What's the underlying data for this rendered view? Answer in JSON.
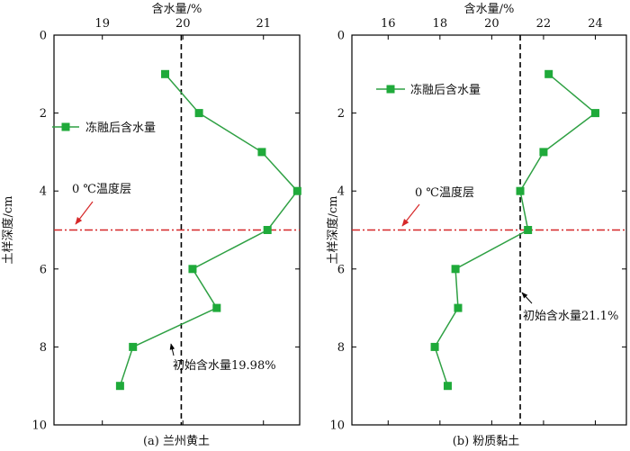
{
  "colors": {
    "series": "#2ea043",
    "marker": "#1faa3a",
    "threshold_line": "#d62728",
    "initial_line": "#000000",
    "axis": "#000000"
  },
  "chart_data": [
    {
      "type": "line",
      "caption": "(a) 兰州黄土",
      "xlabel": "含水量/%",
      "ylabel": "土样深度/cm",
      "x_axis_position": "top",
      "y_inverted": true,
      "xlim": [
        18.4,
        21.45
      ],
      "ylim": [
        0,
        10
      ],
      "xticks": [
        19,
        20,
        21
      ],
      "yticks": [
        0,
        2,
        4,
        6,
        8,
        10
      ],
      "grid": false,
      "legend": {
        "label": "冻融后含水量",
        "placement": "upper-left"
      },
      "series": [
        {
          "name": "冻融后含水量",
          "x": [
            19.78,
            20.2,
            20.98,
            21.42,
            21.05,
            20.12,
            20.42,
            19.38,
            19.22
          ],
          "y": [
            1,
            2,
            3,
            4,
            5,
            6,
            7,
            8,
            9
          ]
        }
      ],
      "threshold": {
        "depth": 5,
        "label": "0 ℃温度层"
      },
      "initial": {
        "value": 19.98,
        "label": "初始含水量19.98%"
      }
    },
    {
      "type": "line",
      "caption": "(b) 粉质黏土",
      "xlabel": "含水量/%",
      "ylabel": "土样深度/cm",
      "x_axis_position": "top",
      "y_inverted": true,
      "xlim": [
        14.6,
        25.2
      ],
      "ylim": [
        0,
        10
      ],
      "xticks": [
        16,
        18,
        20,
        22,
        24
      ],
      "yticks": [
        0,
        2,
        4,
        6,
        8,
        10
      ],
      "grid": false,
      "legend": {
        "label": "冻融后含水量",
        "placement": "upper-left"
      },
      "series": [
        {
          "name": "冻融后含水量",
          "x": [
            22.2,
            24.0,
            22.0,
            21.1,
            21.4,
            18.6,
            18.7,
            17.8,
            18.3
          ],
          "y": [
            1,
            2,
            3,
            4,
            5,
            6,
            7,
            8,
            9
          ]
        }
      ],
      "threshold": {
        "depth": 5,
        "label": "0 ℃温度层"
      },
      "initial": {
        "value": 21.1,
        "label": "初始含水量21.1%"
      }
    }
  ]
}
